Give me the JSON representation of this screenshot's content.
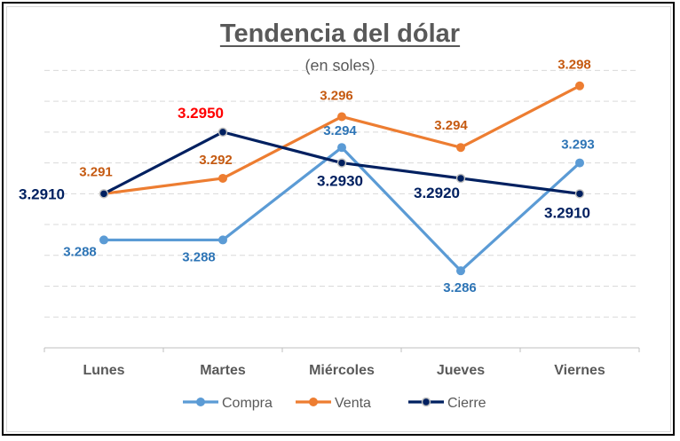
{
  "chart_data": {
    "type": "line",
    "title": "Tendencia del dólar",
    "subtitle": "(en soles)",
    "categories": [
      "Lunes",
      "Martes",
      "Miércoles",
      "Jueves",
      "Viernes"
    ],
    "series": [
      {
        "name": "Compra",
        "values": [
          3.288,
          3.288,
          3.294,
          3.286,
          3.293
        ],
        "labels": [
          "3.288",
          "3.288",
          "3.294",
          "3.286",
          "3.293"
        ],
        "color": "#5b9bd5",
        "label_color": "#2e75b6"
      },
      {
        "name": "Venta",
        "values": [
          3.291,
          3.292,
          3.296,
          3.294,
          3.298
        ],
        "labels": [
          "3.291",
          "3.292",
          "3.296",
          "3.294",
          "3.298"
        ],
        "color": "#ed7d31",
        "label_color": "#c55a11"
      },
      {
        "name": "Cierre",
        "values": [
          3.291,
          3.295,
          3.293,
          3.292,
          3.291
        ],
        "labels": [
          "3.2910",
          "3.2950",
          "3.2930",
          "3.2920",
          "3.2910"
        ],
        "color": "#002060",
        "label_color": "#002060",
        "highlight": {
          "index": 1,
          "color": "#ff0000"
        }
      }
    ],
    "ylim": [
      3.281,
      3.3
    ],
    "gridlines": "dashed horizontal",
    "legend_position": "bottom"
  }
}
